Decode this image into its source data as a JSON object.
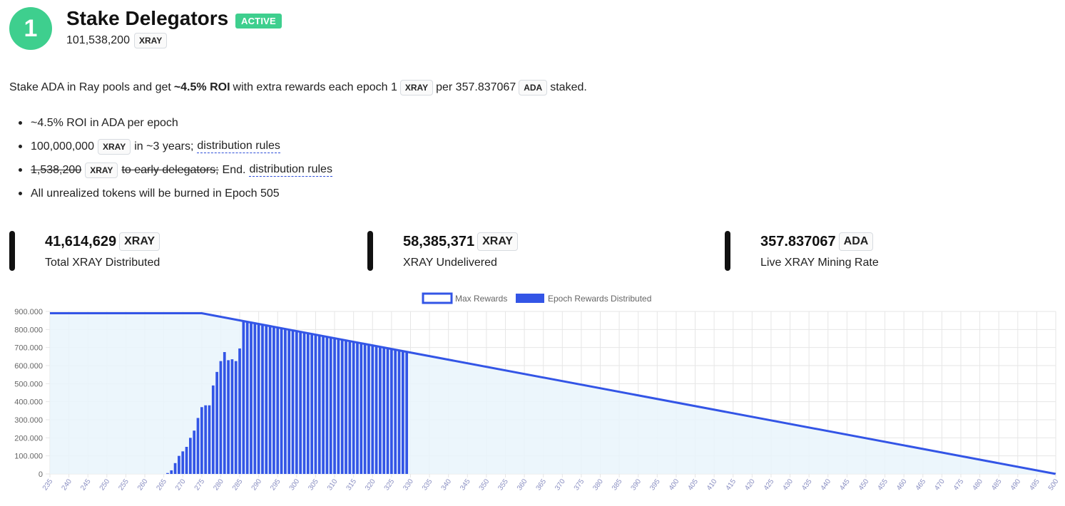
{
  "header": {
    "step_number": "1",
    "title": "Stake Delegators",
    "status": "ACTIVE",
    "amount": "101,538,200",
    "amount_unit": "XRAY"
  },
  "description": {
    "part1": "Stake ADA in Ray pools and get",
    "roi": "~4.5% ROI",
    "part2": "with extra rewards each epoch 1",
    "unit1": "XRAY",
    "part3": "per 357.837067",
    "unit2": "ADA",
    "part4": "staked."
  },
  "bullets": {
    "b1": "~4.5% ROI in ADA per epoch",
    "b2_amount": "100,000,000",
    "b2_unit": "XRAY",
    "b2_text": "in ~3 years;",
    "b2_link": "distribution rules",
    "b3_amount": "1,538,200",
    "b3_unit": "XRAY",
    "b3_text": "to early delegators;",
    "b3_end": "End.",
    "b3_link": "distribution rules",
    "b4": "All unrealized tokens will be burned in Epoch 505"
  },
  "stats": [
    {
      "value": "41,614,629",
      "unit": "XRAY",
      "label": "Total XRAY Distributed"
    },
    {
      "value": "58,385,371",
      "unit": "XRAY",
      "label": "XRAY Undelivered"
    },
    {
      "value": "357.837067",
      "unit": "ADA",
      "label": "Live XRAY Mining Rate"
    }
  ],
  "colors": {
    "accent_green": "#3ecf8e",
    "bar_blue": "#3355e6",
    "area_fill": "#e9f4fc"
  },
  "chart_data": {
    "type": "bar",
    "legend": [
      "Max Rewards",
      "Epoch Rewards Distributed"
    ],
    "legend_position": "top-center",
    "grid": true,
    "x_range": [
      235,
      500
    ],
    "x_ticks": [
      235,
      240,
      245,
      250,
      255,
      260,
      265,
      270,
      275,
      280,
      285,
      290,
      295,
      300,
      305,
      310,
      315,
      320,
      325,
      330,
      335,
      340,
      345,
      350,
      355,
      360,
      365,
      370,
      375,
      380,
      385,
      390,
      395,
      400,
      405,
      410,
      415,
      420,
      425,
      430,
      435,
      440,
      445,
      450,
      455,
      460,
      465,
      470,
      475,
      480,
      485,
      490,
      495,
      500
    ],
    "y_range": [
      0,
      900000
    ],
    "y_ticks": [
      "0",
      "100.000",
      "200.000",
      "300.000",
      "400.000",
      "500.000",
      "600.000",
      "700.000",
      "800.000",
      "900.000"
    ],
    "max_rewards": {
      "name": "Max Rewards",
      "x": [
        235,
        275,
        500
      ],
      "y": [
        890000,
        890000,
        0
      ]
    },
    "epoch_rewards": {
      "name": "Epoch Rewards Distributed",
      "x": [
        266,
        267,
        268,
        269,
        270,
        271,
        272,
        273,
        274,
        275,
        276,
        277,
        278,
        279,
        280,
        281,
        282,
        283,
        284,
        285,
        286,
        287,
        288,
        289,
        290,
        291,
        292,
        293,
        294,
        295,
        296,
        297,
        298,
        299,
        300,
        301,
        302,
        303,
        304,
        305,
        306,
        307,
        308,
        309,
        310,
        311,
        312,
        313,
        314,
        315,
        316,
        317,
        318,
        319,
        320,
        321,
        322,
        323,
        324,
        325,
        326,
        327,
        328,
        329
      ],
      "values": [
        5000,
        20000,
        60000,
        100000,
        125000,
        150000,
        200000,
        240000,
        310000,
        370000,
        380000,
        380000,
        490000,
        565000,
        625000,
        675000,
        630000,
        635000,
        625000,
        695000,
        850000,
        844000,
        840000,
        836000,
        832000,
        828000,
        824000,
        820000,
        816000,
        812000,
        808000,
        804000,
        800000,
        796000,
        792000,
        788000,
        784000,
        780000,
        776000,
        772000,
        768000,
        764000,
        760000,
        756000,
        752000,
        748000,
        744000,
        740000,
        736000,
        732000,
        728000,
        724000,
        720000,
        716000,
        712000,
        708000,
        704000,
        700000,
        696000,
        692000,
        688000,
        684000,
        680000,
        676000
      ]
    }
  }
}
